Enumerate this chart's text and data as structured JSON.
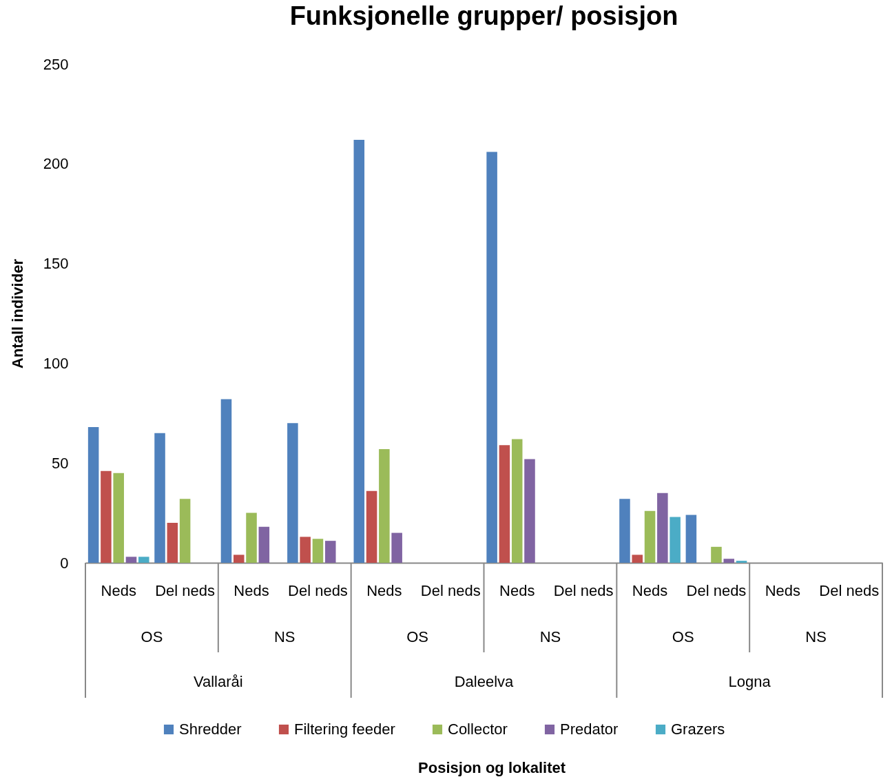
{
  "chart_data": {
    "type": "bar",
    "title": "Funksjonelle grupper/ posisjon",
    "ylabel": "Antall individer",
    "categories": [
      "Neds",
      "Del neds",
      "Neds",
      "Del neds",
      "Neds",
      "Del neds",
      "Neds",
      "Del neds",
      "Neds",
      "Del neds",
      "Neds",
      "Del neds"
    ],
    "annotations": [
      "OS",
      "NS",
      "OS",
      "NS",
      "OS",
      "NS",
      "Vallaråi",
      "Daleelva",
      "Logna",
      "Posisjon og lokalitet"
    ],
    "series": [
      {
        "name": "Shredder",
        "color": "#4f81bd",
        "values": [
          68,
          65,
          82,
          70,
          212,
          null,
          206,
          null,
          32,
          24,
          null,
          null
        ]
      },
      {
        "name": "Filtering feeder",
        "color": "#c0504d",
        "values": [
          46,
          20,
          4,
          13,
          36,
          null,
          59,
          null,
          4,
          null,
          null,
          null
        ]
      },
      {
        "name": "Collector",
        "color": "#9bbb59",
        "values": [
          45,
          32,
          25,
          12,
          57,
          null,
          62,
          null,
          26,
          8,
          null,
          null
        ]
      },
      {
        "name": "Predator",
        "color": "#8064a2",
        "values": [
          3,
          null,
          18,
          11,
          15,
          null,
          52,
          null,
          35,
          2,
          null,
          null
        ]
      },
      {
        "name": "Grazers",
        "color": "#4bacc6",
        "values": [
          3,
          null,
          null,
          null,
          null,
          null,
          null,
          null,
          23,
          1,
          null,
          null
        ]
      }
    ],
    "ylim": [
      0,
      250
    ],
    "yticks": [
      0,
      50,
      100,
      150,
      200,
      250
    ],
    "grid": false,
    "legend": "bottom"
  }
}
